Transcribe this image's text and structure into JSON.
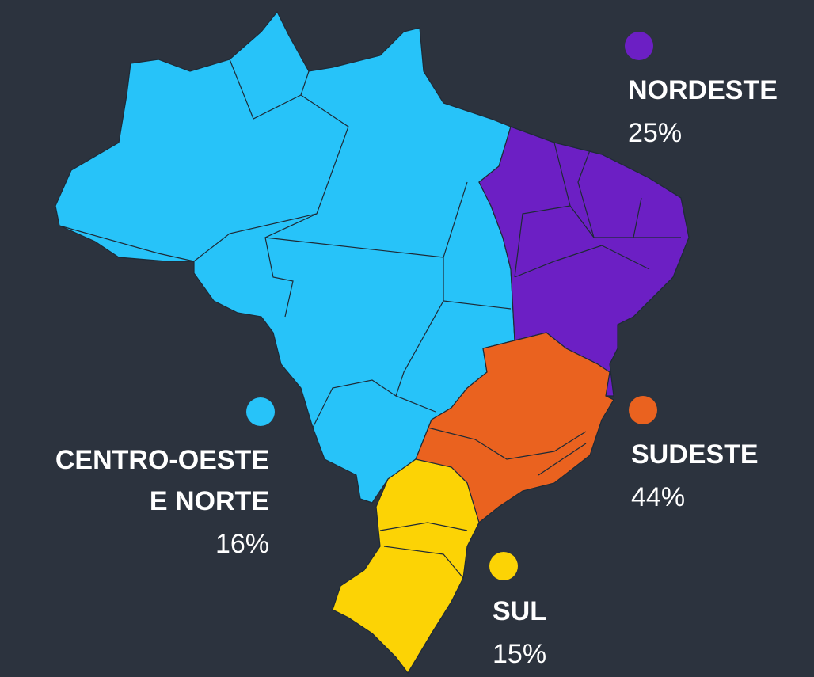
{
  "regions": [
    {
      "name": [
        "NORDESTE"
      ],
      "value": 25,
      "value_label": "25%",
      "color": "#6c1fc4"
    },
    {
      "name": [
        "SUDESTE"
      ],
      "value": 44,
      "value_label": "44%",
      "color": "#ea621f"
    },
    {
      "name": [
        "CENTRO-OESTE",
        "E NORTE"
      ],
      "value": 16,
      "value_label": "16%",
      "color": "#27c3f9"
    },
    {
      "name": [
        "SUL"
      ],
      "value": 15,
      "value_label": "15%",
      "color": "#fcd305"
    }
  ]
}
